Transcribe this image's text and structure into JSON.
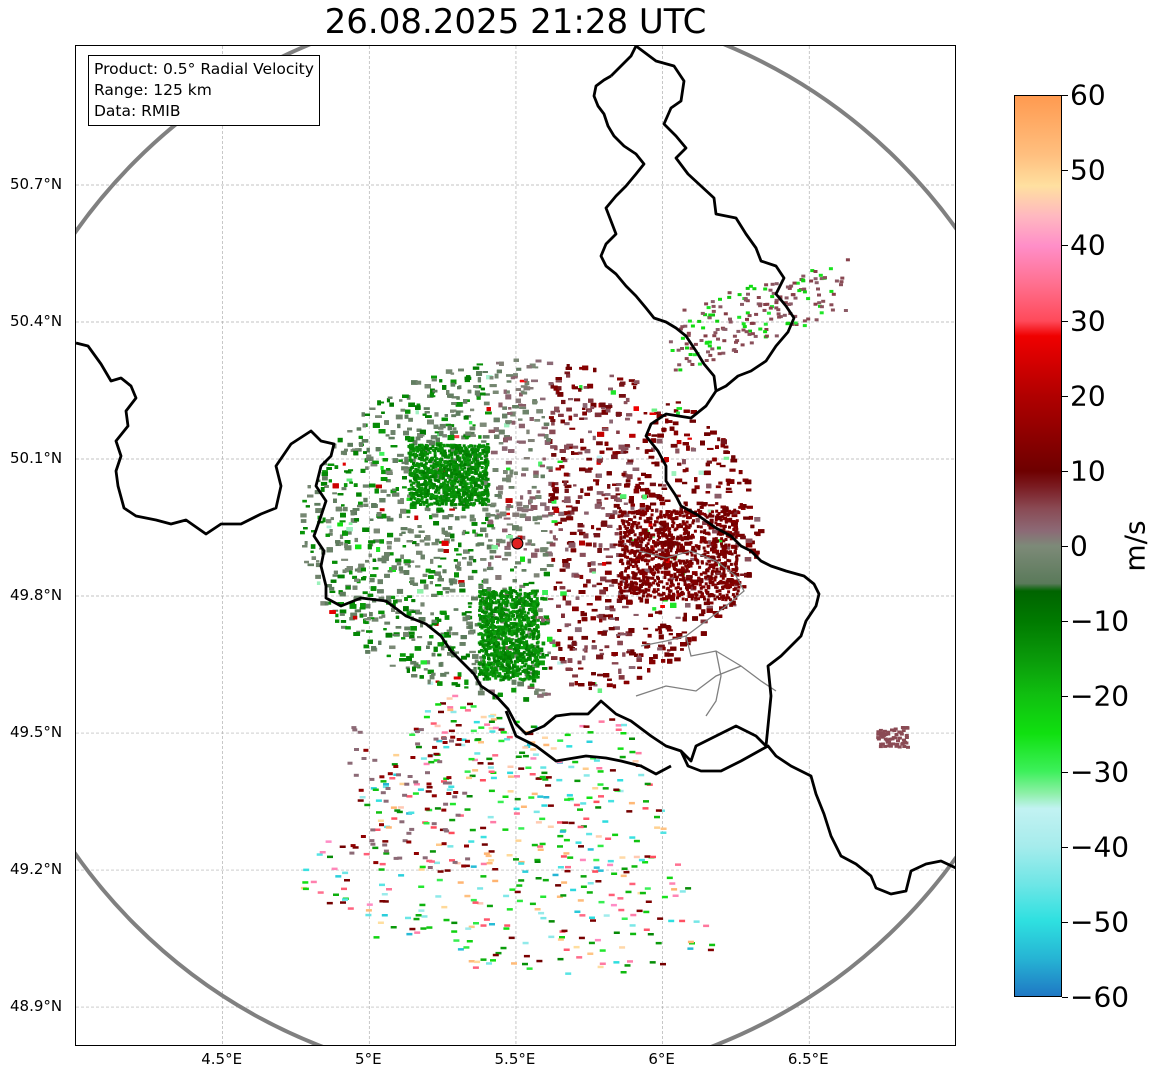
{
  "title": "26.08.2025 21:28 UTC",
  "info": {
    "product": "Product: 0.5° Radial Velocity",
    "range": "Range: 125 km",
    "data": "Data: RMIB"
  },
  "map": {
    "lat_range": [
      48.8,
      51.0
    ],
    "lon_range": [
      4.0,
      7.0
    ],
    "lat_ticks": [
      {
        "value": 50.7,
        "label": "50.7°N"
      },
      {
        "value": 50.4,
        "label": "50.4°N"
      },
      {
        "value": 50.1,
        "label": "50.1°N"
      },
      {
        "value": 49.8,
        "label": "49.8°N"
      },
      {
        "value": 49.5,
        "label": "49.5°N"
      },
      {
        "value": 49.2,
        "label": "49.2°N"
      },
      {
        "value": 48.9,
        "label": "48.9°N"
      }
    ],
    "lon_ticks": [
      {
        "value": 4.5,
        "label": "4.5°E"
      },
      {
        "value": 5.0,
        "label": "5°E"
      },
      {
        "value": 5.5,
        "label": "5.5°E"
      },
      {
        "value": 6.0,
        "label": "6°E"
      },
      {
        "value": 6.5,
        "label": "6.5°E"
      }
    ],
    "radar_site": {
      "lon": 5.505,
      "lat": 49.915
    },
    "range_ring_km": 125,
    "colors": {
      "border": "#000000",
      "region_border": "#7f7f7f",
      "range_ring": "#808080",
      "grid": "#b0b0b0",
      "site": "#e02020"
    }
  },
  "colorbar": {
    "label": "m/s",
    "min": -60,
    "max": 60,
    "ticks": [
      {
        "value": 60,
        "label": "60"
      },
      {
        "value": 50,
        "label": "50"
      },
      {
        "value": 40,
        "label": "40"
      },
      {
        "value": 30,
        "label": "30"
      },
      {
        "value": 20,
        "label": "20"
      },
      {
        "value": 10,
        "label": "10"
      },
      {
        "value": 0,
        "label": "0"
      },
      {
        "value": -10,
        "label": "−10"
      },
      {
        "value": -20,
        "label": "−20"
      },
      {
        "value": -30,
        "label": "−30"
      },
      {
        "value": -40,
        "label": "−40"
      },
      {
        "value": -50,
        "label": "−50"
      },
      {
        "value": -60,
        "label": "−60"
      }
    ],
    "stops": [
      {
        "value": -60,
        "color": "#1f78c4"
      },
      {
        "value": -55,
        "color": "#26b4d4"
      },
      {
        "value": -50,
        "color": "#2ee0e0"
      },
      {
        "value": -45,
        "color": "#6fe6e6"
      },
      {
        "value": -40,
        "color": "#a6ecec"
      },
      {
        "value": -35,
        "color": "#c2f2f2"
      },
      {
        "value": -33,
        "color": "#8ef0a8"
      },
      {
        "value": -30,
        "color": "#3cf05a"
      },
      {
        "value": -25,
        "color": "#10e010"
      },
      {
        "value": -20,
        "color": "#10c010"
      },
      {
        "value": -15,
        "color": "#0a9a0a"
      },
      {
        "value": -10,
        "color": "#007a00"
      },
      {
        "value": -6,
        "color": "#006400"
      },
      {
        "value": -5,
        "color": "#5a7a5a"
      },
      {
        "value": 0,
        "color": "#7d8a78"
      },
      {
        "value": 2,
        "color": "#8c6a76"
      },
      {
        "value": 5,
        "color": "#8a4a54"
      },
      {
        "value": 8,
        "color": "#7a1a20"
      },
      {
        "value": 10,
        "color": "#6e0000"
      },
      {
        "value": 20,
        "color": "#b00000"
      },
      {
        "value": 28,
        "color": "#f00000"
      },
      {
        "value": 30,
        "color": "#ff4a5a"
      },
      {
        "value": 35,
        "color": "#ff7090"
      },
      {
        "value": 40,
        "color": "#ff8ec8"
      },
      {
        "value": 44,
        "color": "#ffb8c0"
      },
      {
        "value": 48,
        "color": "#ffe0a0"
      },
      {
        "value": 52,
        "color": "#ffc080"
      },
      {
        "value": 60,
        "color": "#ff9a50"
      }
    ]
  }
}
